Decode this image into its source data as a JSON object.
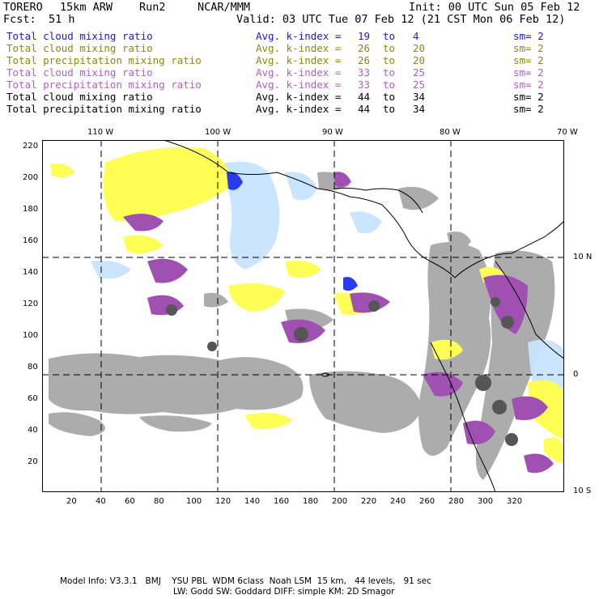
{
  "header": {
    "model": "TORERO",
    "resolution": "15km ARW",
    "run": "Run2",
    "org": "NCAR/MMM",
    "init": "Init: 00 UTC Sun 05 Feb 12",
    "fcst_label": "Fcst:",
    "fcst_value": "51 h",
    "valid": "Valid: 03 UTC Tue 07 Feb 12 (21 CST Mon 06 Feb 12)"
  },
  "legend": [
    {
      "field": "Total cloud mixing ratio",
      "index": "Avg. k-index =",
      "from": "19",
      "to_word": "to",
      "to": "4",
      "sm": "sm= 2",
      "color": "#1a1ad0"
    },
    {
      "field": "Total cloud mixing ratio",
      "index": "Avg. k-index =",
      "from": "26",
      "to_word": "to",
      "to": "20",
      "sm": "sm= 2",
      "color": "#8a8a10"
    },
    {
      "field": "Total precipitation mixing ratio",
      "index": "Avg. k-index =",
      "from": "26",
      "to_word": "to",
      "to": "20",
      "sm": "sm= 2",
      "color": "#8a8a10"
    },
    {
      "field": "Total cloud mixing ratio",
      "index": "Avg. k-index =",
      "from": "33",
      "to_word": "to",
      "to": "25",
      "sm": "sm= 2",
      "color": "#b060c0"
    },
    {
      "field": "Total precipitation mixing ratio",
      "index": "Avg. k-index =",
      "from": "33",
      "to_word": "to",
      "to": "25",
      "sm": "sm= 2",
      "color": "#b060c0"
    },
    {
      "field": "Total cloud mixing ratio",
      "index": "Avg. k-index =",
      "from": "44",
      "to_word": "to",
      "to": "34",
      "sm": "sm= 2",
      "color": "#000000"
    },
    {
      "field": "Total precipitation mixing ratio",
      "index": "Avg. k-index =",
      "from": "44",
      "to_word": "to",
      "to": "34",
      "sm": "sm= 2",
      "color": "#000000"
    }
  ],
  "axes": {
    "top_lon": [
      "110 W",
      "100 W",
      "90 W",
      "80 W",
      "70 W"
    ],
    "right_lat": [
      "10 N",
      "0",
      "10 S"
    ],
    "left_y": [
      "220",
      "200",
      "180",
      "160",
      "140",
      "120",
      "100",
      "80",
      "60",
      "40",
      "20"
    ],
    "bottom_x": [
      "20",
      "40",
      "60",
      "80",
      "100",
      "120",
      "140",
      "160",
      "180",
      "200",
      "220",
      "240",
      "260",
      "280",
      "300",
      "320"
    ]
  },
  "footer": {
    "line1": "Model Info: V3.3.1   BMJ    YSU PBL  WDM 6class  Noah LSM  15 km,   44 levels,   91 sec",
    "line2": "LW: Godd SW: Goddard DIFF: simple KM: 2D Smagor"
  },
  "colors": {
    "gray": "#a8a8a8",
    "dark_gray": "#555555",
    "yellow": "#ffff55",
    "purple": "#a050b0",
    "light_blue": "#c8e4ff",
    "blue": "#2a3af0"
  }
}
